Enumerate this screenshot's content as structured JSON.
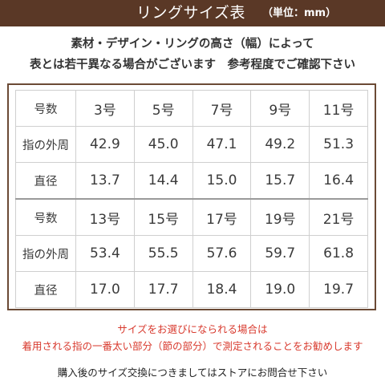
{
  "header": {
    "title": "リングサイズ表",
    "unit": "（単位：mm）",
    "bg_color": "#5a3826"
  },
  "notice": {
    "line1": "素材・デザイン・リングの高さ（幅）によって",
    "line2": "表とは若干異なる場合がございます　参考程度でご確認下さい"
  },
  "table": {
    "groups": [
      {
        "header": [
          "号数",
          "3号",
          "5号",
          "7号",
          "9号",
          "11号"
        ],
        "circumference": [
          "指の外周",
          "42.9",
          "45.0",
          "47.1",
          "49.2",
          "51.3"
        ],
        "diameter": [
          "直径",
          "13.7",
          "14.4",
          "15.0",
          "15.7",
          "16.4"
        ]
      },
      {
        "header": [
          "号数",
          "13号",
          "15号",
          "17号",
          "19号",
          "21号"
        ],
        "circumference": [
          "指の外周",
          "53.4",
          "55.5",
          "57.6",
          "59.7",
          "61.8"
        ],
        "diameter": [
          "直径",
          "17.0",
          "17.7",
          "18.4",
          "19.0",
          "19.7"
        ]
      }
    ]
  },
  "note": {
    "line1": "サイズをお選びになられる場合は",
    "line2": "着用される指の一番太い部分（節の部分）で測定されることをお勧めします",
    "color": "#d83a2e"
  },
  "footer": {
    "text": "購入後のサイズ交換につきましてはストアにお問合せ下さい"
  }
}
